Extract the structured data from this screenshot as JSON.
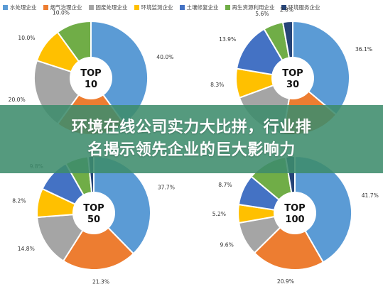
{
  "headline": {
    "line1": "环境在线公司实力大比拼，行业排",
    "line2": "名揭示领先企业的巨大影响力"
  },
  "legend": [
    {
      "label": "水处理企业",
      "color": "#5b9bd5"
    },
    {
      "label": "烟气治理企业",
      "color": "#ed7d31"
    },
    {
      "label": "固废处理企业",
      "color": "#a5a5a5"
    },
    {
      "label": "环境监测企业",
      "color": "#ffc000"
    },
    {
      "label": "土壤修复企业",
      "color": "#4472c4"
    },
    {
      "label": "再生资源利用企业",
      "color": "#70ad47"
    },
    {
      "label": "环境服务企业",
      "color": "#264478"
    }
  ],
  "chart_data": [
    {
      "type": "pie",
      "center_label": [
        "TOP",
        "10"
      ],
      "categories": [
        "水处理企业",
        "烟气治理企业",
        "固废处理企业",
        "环境监测企业",
        "土壤修复企业",
        "再生资源利用企业",
        "环境服务企业"
      ],
      "values": [
        40.0,
        20.0,
        20.0,
        10.0,
        0,
        10.0,
        0
      ],
      "labels": [
        "40.0%",
        "",
        "20.0%",
        "10.0%",
        "",
        "10.0%",
        ""
      ]
    },
    {
      "type": "pie",
      "center_label": [
        "TOP",
        "30"
      ],
      "categories": [
        "水处理企业",
        "烟气治理企业",
        "固废处理企业",
        "环境监测企业",
        "土壤修复企业",
        "再生资源利用企业",
        "环境服务企业"
      ],
      "values": [
        36.1,
        16.6,
        16.6,
        8.3,
        13.9,
        5.6,
        2.8
      ],
      "labels": [
        "36.1%",
        "",
        "",
        "8.3%",
        "13.9%",
        "5.6%",
        "2.8%"
      ]
    },
    {
      "type": "pie",
      "center_label": [
        "TOP",
        "50"
      ],
      "categories": [
        "水处理企业",
        "烟气治理企业",
        "固废处理企业",
        "环境监测企业",
        "土壤修复企业",
        "再生资源利用企业",
        "环境服务企业"
      ],
      "values": [
        37.7,
        21.3,
        14.8,
        8.2,
        9.8,
        6.6,
        1.6
      ],
      "labels": [
        "37.7%",
        "21.3%",
        "14.8%",
        "8.2%",
        "9.8%",
        "",
        ""
      ]
    },
    {
      "type": "pie",
      "center_label": [
        "TOP",
        "100"
      ],
      "categories": [
        "水处理企业",
        "烟气治理企业",
        "固废处理企业",
        "环境监测企业",
        "土壤修复企业",
        "再生资源利用企业",
        "环境服务企业"
      ],
      "values": [
        41.7,
        20.9,
        9.6,
        5.2,
        8.7,
        11.3,
        2.6
      ],
      "labels": [
        "41.7%",
        "20.9%",
        "9.6%",
        "5.2%",
        "8.7%",
        "",
        ""
      ]
    }
  ]
}
